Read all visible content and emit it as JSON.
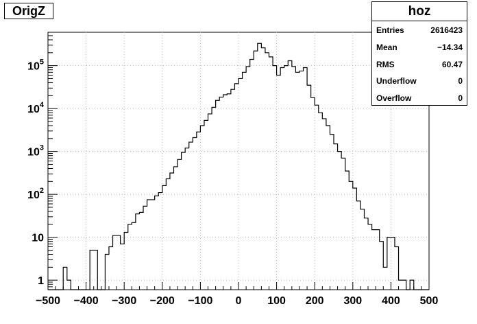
{
  "chart_data": {
    "type": "bar",
    "histogram": true,
    "title": "OrigZ",
    "xlabel": "",
    "ylabel": "",
    "xlim": [
      -500,
      500
    ],
    "ylim": [
      0.6,
      600000
    ],
    "ylog": true,
    "grid": true,
    "bin_width": 10,
    "x_ticks": [
      -500,
      -400,
      -300,
      -200,
      -100,
      0,
      100,
      200,
      300,
      400,
      500
    ],
    "x_tick_labels": [
      "−500",
      "−400",
      "−300",
      "−200",
      "−100",
      "0",
      "100",
      "200",
      "300",
      "400",
      "500"
    ],
    "y_ticks": [
      1,
      10,
      100,
      1000,
      10000,
      100000
    ],
    "y_tick_labels": [
      "1",
      "10",
      "10^2",
      "10^3",
      "10^4",
      "10^5"
    ],
    "bin_low_edges": [
      -500,
      -490,
      -480,
      -470,
      -460,
      -450,
      -440,
      -430,
      -420,
      -410,
      -400,
      -390,
      -380,
      -370,
      -360,
      -350,
      -340,
      -330,
      -320,
      -310,
      -300,
      -290,
      -280,
      -270,
      -260,
      -250,
      -240,
      -230,
      -220,
      -210,
      -200,
      -190,
      -180,
      -170,
      -160,
      -150,
      -140,
      -130,
      -120,
      -110,
      -100,
      -90,
      -80,
      -70,
      -60,
      -50,
      -40,
      -30,
      -20,
      -10,
      0,
      10,
      20,
      30,
      40,
      50,
      60,
      70,
      80,
      90,
      100,
      110,
      120,
      130,
      140,
      150,
      160,
      170,
      180,
      190,
      200,
      210,
      220,
      230,
      240,
      250,
      260,
      270,
      280,
      290,
      300,
      310,
      320,
      330,
      340,
      350,
      360,
      370,
      380,
      390,
      400,
      410,
      420,
      430,
      440,
      450,
      460,
      470,
      480,
      490
    ],
    "values": [
      0,
      0,
      0,
      0,
      2,
      1,
      0,
      0,
      0,
      0,
      0,
      5,
      5,
      0,
      0,
      4,
      6,
      11,
      11,
      7,
      13,
      20,
      22,
      35,
      38,
      53,
      75,
      75,
      92,
      110,
      160,
      230,
      315,
      440,
      650,
      950,
      1200,
      1650,
      2100,
      2850,
      4000,
      5300,
      7500,
      10700,
      15500,
      18500,
      21000,
      22000,
      28000,
      38000,
      50000,
      70000,
      95000,
      140000,
      220000,
      330000,
      260000,
      200000,
      160000,
      100000,
      60000,
      90000,
      100000,
      130000,
      95000,
      70000,
      75000,
      90000,
      35000,
      18000,
      12000,
      8000,
      5800,
      4000,
      2500,
      1500,
      1000,
      700,
      350,
      200,
      140,
      70,
      45,
      28,
      20,
      15,
      15,
      8,
      2,
      10,
      10,
      6,
      1,
      1,
      0,
      1,
      0,
      0,
      0,
      0
    ],
    "series": [
      {
        "name": "hoz"
      }
    ]
  },
  "stats": {
    "name": "hoz",
    "rows": [
      {
        "key": "Entries",
        "value": "2616423"
      },
      {
        "key": "Mean",
        "value": "−14.34"
      },
      {
        "key": "RMS",
        "value": "60.47"
      },
      {
        "key": "Underflow",
        "value": "0"
      },
      {
        "key": "Overflow",
        "value": "0"
      }
    ]
  }
}
